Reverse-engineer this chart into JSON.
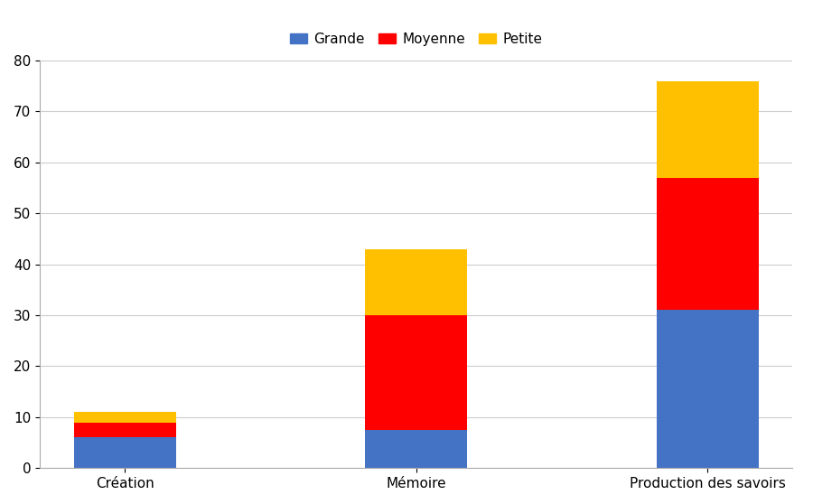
{
  "categories": [
    "Création",
    "Mémoire",
    "Production des savoirs"
  ],
  "grande": [
    6,
    7.5,
    31
  ],
  "moyenne": [
    3,
    22.5,
    26
  ],
  "petite": [
    2,
    13,
    19
  ],
  "colors": {
    "grande": "#4472C4",
    "moyenne": "#FF0000",
    "petite": "#FFC000"
  },
  "ylim": [
    0,
    80
  ],
  "yticks": [
    0,
    10,
    20,
    30,
    40,
    50,
    60,
    70,
    80
  ],
  "legend_labels": [
    "Grande",
    "Moyenne",
    "Petite"
  ],
  "background_color": "#FFFFFF",
  "grid_color": "#CCCCCC",
  "bar_width": 0.35
}
